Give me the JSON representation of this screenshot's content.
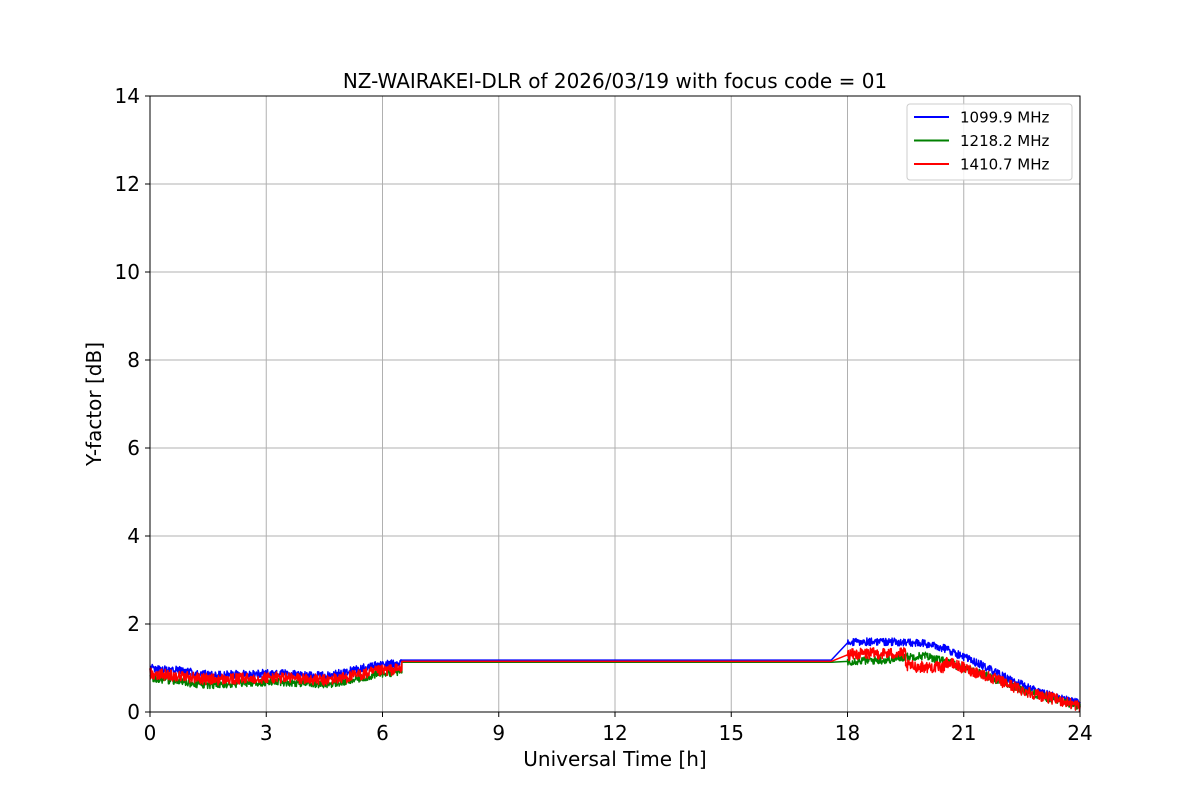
{
  "chart_data": {
    "type": "line",
    "title": "NZ-WAIRAKEI-DLR of 2026/03/19 with focus code = 01",
    "xlabel": "Universal Time [h]",
    "ylabel": "Y-factor [dB]",
    "xlim": [
      0,
      24
    ],
    "ylim": [
      0,
      14
    ],
    "xticks": [
      0,
      3,
      6,
      9,
      12,
      15,
      18,
      21,
      24
    ],
    "yticks": [
      0,
      2,
      4,
      6,
      8,
      10,
      12,
      14
    ],
    "grid": true,
    "legend_position": "top-right",
    "series": [
      {
        "name": "1099.9 MHz",
        "color": "#0000ff",
        "noise": 0.09,
        "x": [
          0,
          0.5,
          1,
          1.5,
          2,
          2.5,
          3,
          3.5,
          4,
          4.5,
          5,
          5.5,
          6,
          6.5,
          6.5,
          9,
          12,
          15,
          18,
          18,
          18.5,
          19,
          19.5,
          20,
          20.5,
          21,
          21.5,
          22,
          22.5,
          23,
          23.5,
          24
        ],
        "y": [
          1.0,
          0.97,
          0.92,
          0.85,
          0.85,
          0.86,
          0.88,
          0.87,
          0.84,
          0.82,
          0.9,
          1.0,
          1.08,
          1.12,
          1.18,
          1.18,
          1.18,
          1.18,
          1.18,
          1.57,
          1.6,
          1.6,
          1.58,
          1.55,
          1.45,
          1.25,
          1.05,
          0.82,
          0.62,
          0.45,
          0.3,
          0.2
        ]
      },
      {
        "name": "1218.2 MHz",
        "color": "#008000",
        "noise": 0.09,
        "x": [
          0,
          0.5,
          1,
          1.5,
          2,
          2.5,
          3,
          3.5,
          4,
          4.5,
          5,
          5.5,
          6,
          6.5,
          6.5,
          9,
          12,
          15,
          18,
          18,
          18.5,
          19,
          19.5,
          20,
          20.5,
          21,
          21.5,
          22,
          22.5,
          23,
          23.5,
          24
        ],
        "y": [
          0.78,
          0.72,
          0.66,
          0.62,
          0.63,
          0.66,
          0.68,
          0.68,
          0.66,
          0.63,
          0.68,
          0.78,
          0.88,
          0.92,
          1.13,
          1.13,
          1.13,
          1.13,
          1.13,
          1.15,
          1.17,
          1.18,
          1.25,
          1.28,
          1.15,
          1.0,
          0.85,
          0.68,
          0.5,
          0.36,
          0.24,
          0.12
        ]
      },
      {
        "name": "1410.7 MHz",
        "color": "#ff0000",
        "noise": 0.13,
        "x": [
          0,
          0.5,
          1,
          1.5,
          2,
          2.5,
          3,
          3.5,
          4,
          4.5,
          5,
          5.5,
          6,
          6.5,
          6.5,
          9,
          12,
          15,
          18,
          18,
          18.5,
          19,
          19.5,
          19.5,
          20,
          20.5,
          20.5,
          21,
          21.5,
          22,
          22.5,
          23,
          23.5,
          24
        ],
        "y": [
          0.88,
          0.84,
          0.8,
          0.74,
          0.74,
          0.76,
          0.78,
          0.78,
          0.75,
          0.72,
          0.78,
          0.86,
          0.94,
          0.98,
          1.15,
          1.15,
          1.15,
          1.15,
          1.15,
          1.3,
          1.33,
          1.33,
          1.33,
          1.05,
          1.02,
          1.02,
          1.15,
          1.0,
          0.85,
          0.68,
          0.5,
          0.37,
          0.26,
          0.13
        ]
      }
    ]
  }
}
